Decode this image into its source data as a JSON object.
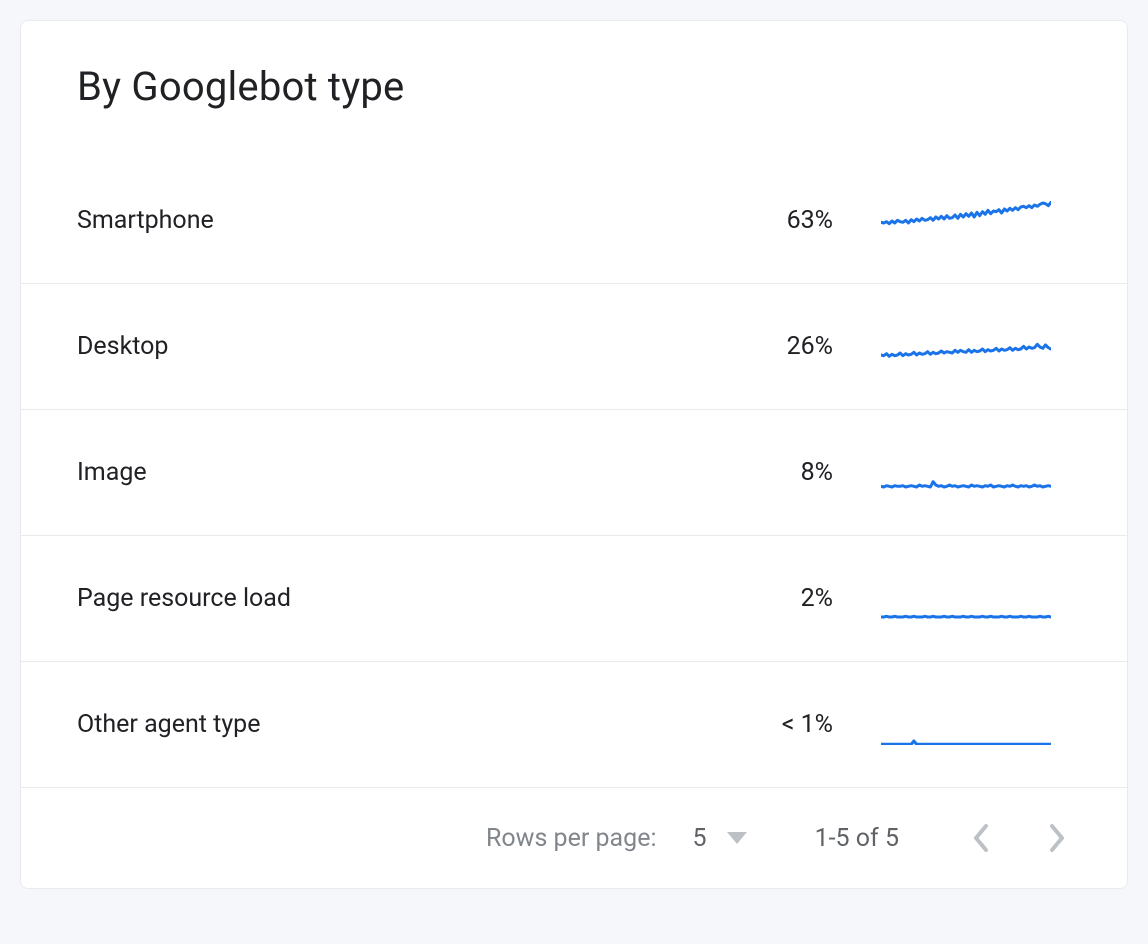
{
  "card": {
    "title": "By Googlebot type",
    "background_color": "#ffffff",
    "border_color": "#e8eaed",
    "text_color": "#202124",
    "muted_text_color": "#80868b",
    "spark_color": "#1a73e8",
    "spark_width": 170,
    "spark_height": 40,
    "spark_stroke_width": 3,
    "rows": [
      {
        "label": "Smartphone",
        "value": "63%",
        "spark_series": [
          28,
          27,
          29,
          26,
          30,
          27,
          31,
          29,
          28,
          31,
          27,
          32,
          29,
          33,
          30,
          34,
          31,
          32,
          35,
          31,
          36,
          33,
          37,
          33,
          38,
          34,
          35,
          39,
          34,
          40,
          36,
          41,
          37,
          42,
          36,
          43,
          38,
          44,
          40,
          46,
          41,
          45,
          44,
          47,
          42,
          48,
          45,
          49,
          46,
          50,
          47,
          51,
          52,
          50,
          53,
          50,
          54,
          52,
          55,
          57,
          56,
          53,
          58
        ]
      },
      {
        "label": "Desktop",
        "value": "26%",
        "spark_series": [
          18,
          17,
          20,
          16,
          19,
          17,
          18,
          21,
          17,
          20,
          18,
          19,
          22,
          18,
          21,
          19,
          20,
          23,
          19,
          22,
          20,
          21,
          24,
          21,
          23,
          22,
          21,
          25,
          22,
          25,
          23,
          22,
          26,
          22,
          25,
          23,
          24,
          27,
          23,
          26,
          24,
          25,
          28,
          24,
          27,
          25,
          26,
          29,
          25,
          28,
          26,
          27,
          31,
          27,
          30,
          28,
          29,
          34,
          30,
          28,
          33,
          29,
          27
        ]
      },
      {
        "label": "Image",
        "value": "8%",
        "spark_series": [
          10,
          9,
          11,
          10,
          9,
          11,
          10,
          10,
          11,
          9,
          10,
          11,
          10,
          9,
          12,
          10,
          11,
          10,
          9,
          17,
          12,
          10,
          11,
          9,
          10,
          12,
          10,
          11,
          9,
          10,
          11,
          10,
          9,
          12,
          10,
          11,
          10,
          9,
          11,
          10,
          12,
          9,
          10,
          11,
          10,
          9,
          11,
          10,
          12,
          10,
          9,
          11,
          10,
          11,
          9,
          10,
          12,
          10,
          11,
          9,
          10,
          11,
          10
        ]
      },
      {
        "label": "Page resource load",
        "value": "2%",
        "spark_series": [
          3,
          3,
          4,
          3,
          3,
          4,
          3,
          3,
          3,
          4,
          3,
          3,
          4,
          3,
          3,
          3,
          4,
          3,
          3,
          4,
          3,
          3,
          3,
          4,
          3,
          3,
          4,
          3,
          3,
          3,
          4,
          3,
          3,
          4,
          3,
          3,
          3,
          4,
          3,
          3,
          4,
          3,
          3,
          3,
          4,
          3,
          3,
          4,
          3,
          3,
          3,
          4,
          3,
          3,
          4,
          3,
          3,
          3,
          4,
          3,
          3,
          4,
          3
        ]
      },
      {
        "label": "Other agent type",
        "value": "< 1%",
        "spark_series": [
          1,
          1,
          1,
          1,
          1,
          1,
          1,
          1,
          1,
          1,
          1,
          1,
          6,
          1,
          1,
          1,
          1,
          1,
          1,
          1,
          1,
          1,
          1,
          1,
          1,
          1,
          1,
          1,
          1,
          1,
          1,
          1,
          1,
          1,
          1,
          1,
          1,
          1,
          1,
          1,
          1,
          1,
          1,
          1,
          1,
          1,
          1,
          1,
          1,
          1,
          1,
          1,
          1,
          1,
          1,
          1,
          1,
          1,
          1,
          1,
          1,
          1,
          1
        ]
      }
    ]
  },
  "pagination": {
    "rows_per_page_label": "Rows per page:",
    "rows_per_page_value": "5",
    "range_text": "1-5 of 5"
  }
}
